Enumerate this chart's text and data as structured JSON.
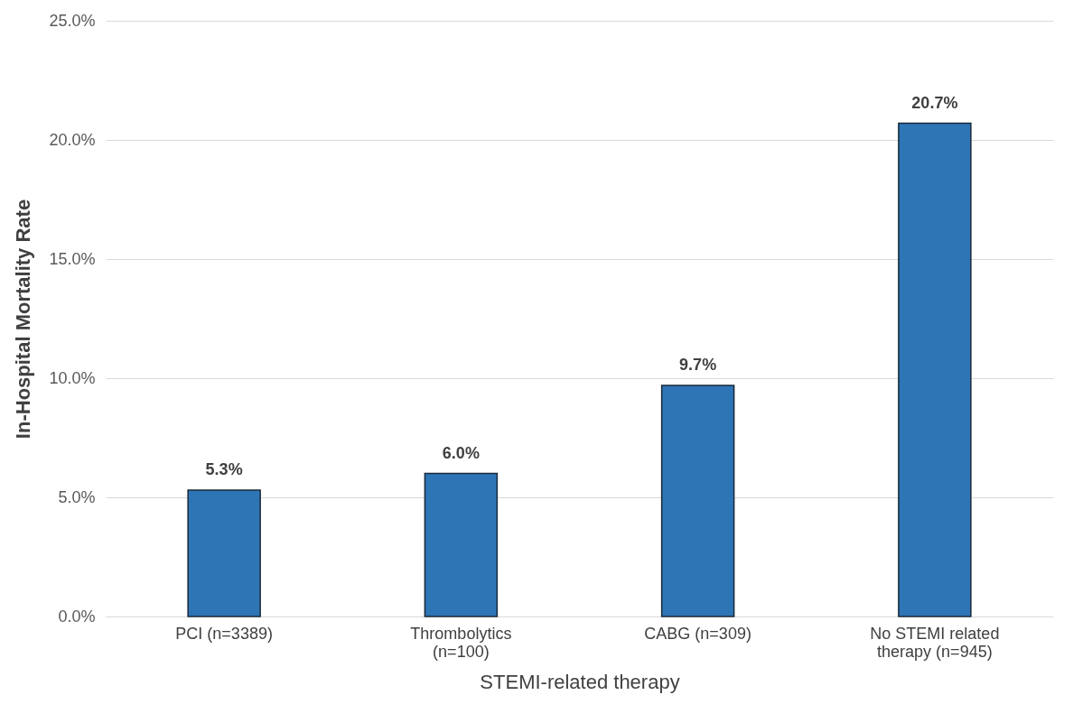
{
  "chart_data": {
    "type": "bar",
    "xlabel": "STEMI-related therapy",
    "ylabel": "In-Hospital Mortality Rate",
    "categories": [
      "PCI (n=3389)",
      "Thrombolytics (n=100)",
      "CABG (n=309)",
      "No STEMI related therapy (n=945)"
    ],
    "values": [
      5.3,
      6.0,
      9.7,
      20.7
    ],
    "value_labels": [
      "5.3%",
      "6.0%",
      "9.7%",
      "20.7%"
    ],
    "color": "#2e75b6",
    "ylim": [
      0,
      25
    ],
    "yticks": [
      {
        "value": 0,
        "label": "0.0%"
      },
      {
        "value": 5,
        "label": "5.0%"
      },
      {
        "value": 10,
        "label": "10.0%"
      },
      {
        "value": 15,
        "label": "15.0%"
      },
      {
        "value": 20,
        "label": "20.0%"
      },
      {
        "value": 25,
        "label": "25.0%"
      }
    ],
    "grid": "y"
  }
}
